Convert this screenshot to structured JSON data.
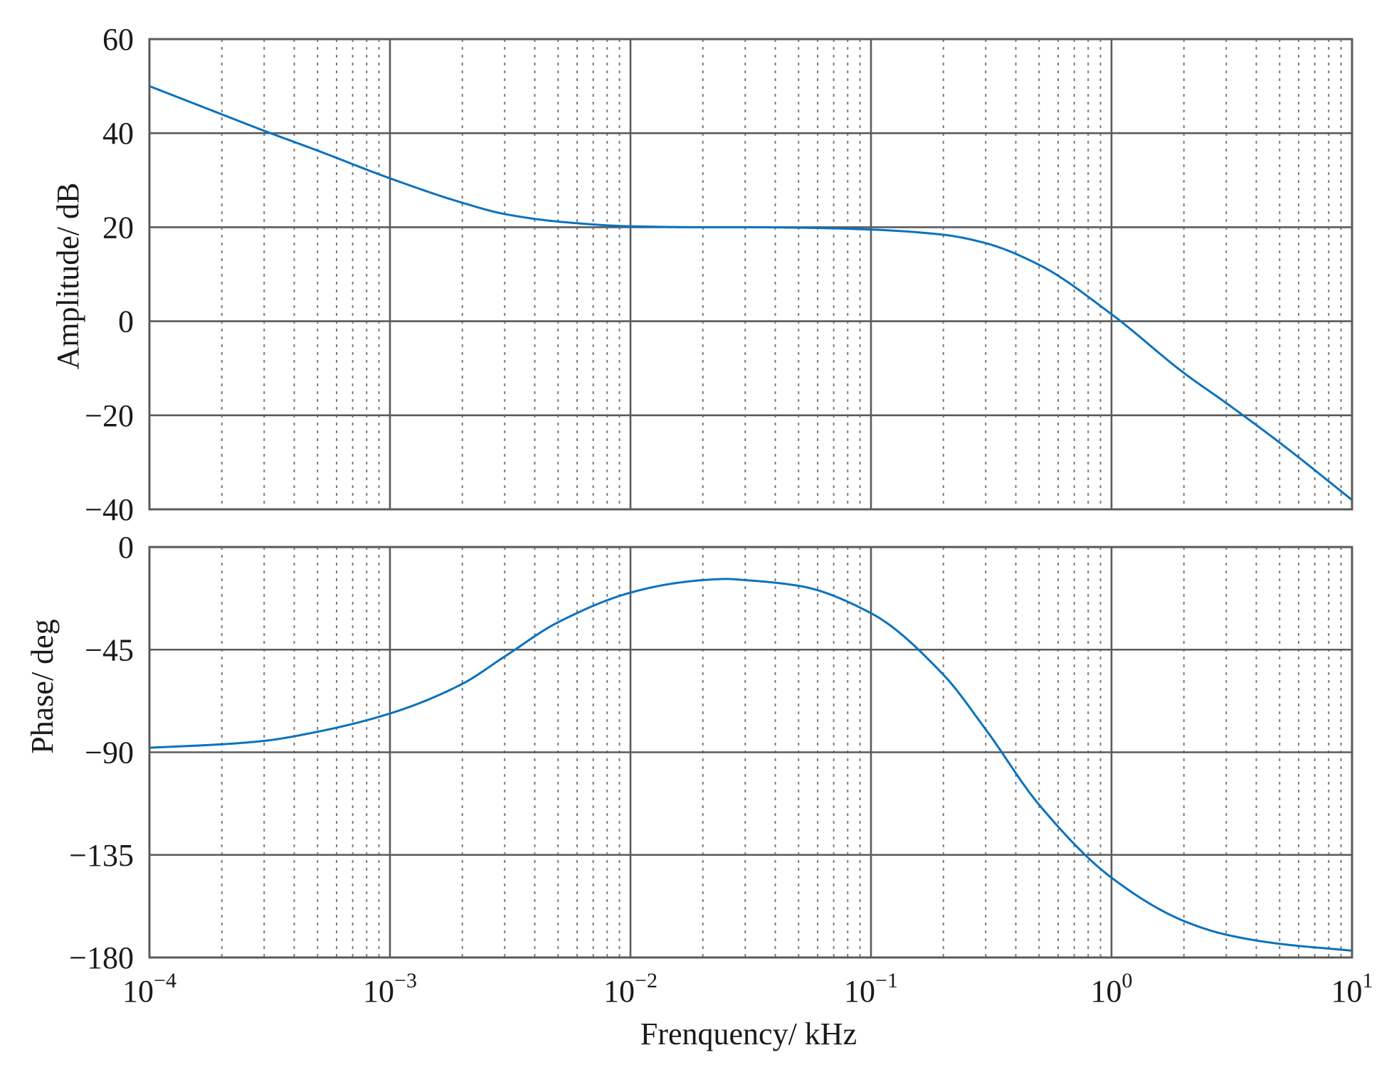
{
  "chart_data": [
    {
      "type": "line",
      "panel": "top",
      "xlabel": "",
      "ylabel": "Amplitude/ dB",
      "xscale": "log",
      "xlim": [
        0.0001,
        10
      ],
      "ylim": [
        -40,
        60
      ],
      "yticks": [
        60,
        40,
        20,
        0,
        -20,
        -40
      ],
      "ytick_labels": [
        "60",
        "40",
        "20",
        "0",
        "−20",
        "−40"
      ],
      "grid": true,
      "series": [
        {
          "color": "#0b72bd",
          "x": [
            0.0001,
            0.0002,
            0.0003,
            0.0005,
            0.001,
            0.002,
            0.003,
            0.005,
            0.01,
            0.02,
            0.03,
            0.05,
            0.1,
            0.2,
            0.3,
            0.5,
            1,
            2,
            3,
            5,
            10
          ],
          "y": [
            50,
            44,
            40.5,
            36.3,
            30.4,
            25.2,
            22.8,
            21.2,
            20.2,
            20.0,
            20.0,
            19.9,
            19.5,
            18.4,
            16.6,
            12,
            1.5,
            -11,
            -17.4,
            -25.8,
            -38
          ]
        }
      ]
    },
    {
      "type": "line",
      "panel": "bottom",
      "xlabel": "Frenquency/ kHz",
      "ylabel": "Phase/ deg",
      "xscale": "log",
      "xlim": [
        0.0001,
        10
      ],
      "ylim": [
        -180,
        0
      ],
      "yticks": [
        0,
        -45,
        -90,
        -135,
        -180
      ],
      "ytick_labels": [
        "0",
        "−45",
        "−90",
        "−135",
        "−180"
      ],
      "xticks": [
        0.0001,
        0.001,
        0.01,
        0.1,
        1,
        10
      ],
      "xtick_labels": [
        {
          "base": "10",
          "exp": "−4"
        },
        {
          "base": "10",
          "exp": "−3"
        },
        {
          "base": "10",
          "exp": "−2"
        },
        {
          "base": "10",
          "exp": "−1"
        },
        {
          "base": "10",
          "exp": "0"
        },
        {
          "base": "10",
          "exp": "1"
        }
      ],
      "grid": true,
      "series": [
        {
          "color": "#0b72bd",
          "x": [
            0.0001,
            0.0002,
            0.0003,
            0.0005,
            0.001,
            0.002,
            0.003,
            0.005,
            0.01,
            0.015,
            0.02,
            0.025,
            0.03,
            0.05,
            0.1,
            0.2,
            0.3,
            0.5,
            1,
            2,
            3,
            5,
            10
          ],
          "y": [
            -88,
            -86.5,
            -85,
            -81,
            -73,
            -60,
            -48,
            -33,
            -20,
            -16,
            -14.5,
            -14,
            -14.5,
            -17,
            -29,
            -56,
            -80,
            -113,
            -145,
            -164,
            -170,
            -174,
            -177
          ]
        }
      ]
    }
  ]
}
